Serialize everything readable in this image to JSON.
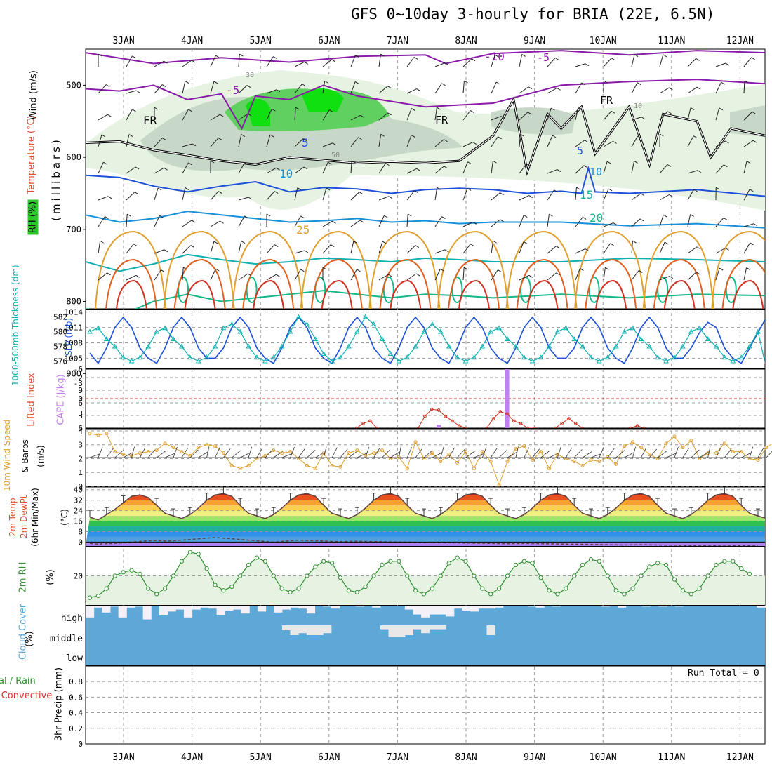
{
  "title": "GFS 0~10day 3-hourly for BRIA (22E, 6.5N)",
  "date_labels": [
    "3JAN",
    "4JAN",
    "5JAN",
    "6JAN",
    "7JAN",
    "8JAN",
    "9JAN",
    "10JAN",
    "11JAN",
    "12JAN"
  ],
  "panel_labels": {
    "p1_wind": "Wind (m/s)",
    "p1_temp": "Temperature (°C)",
    "p1_rh": "RH (%)",
    "p1_pres": "(millibars)",
    "p2_thick": "1000-500mb Thickness (dm)",
    "p2_slp": "SLP (mb)",
    "p3_li": "Lifted Index",
    "p3_cape": "CAPE (J/kg)",
    "p4_a": "10m Wind Speed",
    "p4_b": "& Barbs",
    "p4_c": "(m/s)",
    "p5_a": "2m Temp",
    "p5_b": "2m DewPt",
    "p5_c": "(6hr Min/Max)",
    "p5_d": "(°C)",
    "p6_a": "2m RH",
    "p6_b": "(%)",
    "p7_a": "Cloud Cover",
    "p7_b": "(%)",
    "p7_high": "high",
    "p7_middle": "middle",
    "p7_low": "low",
    "p8_a": "Total / Rain",
    "p8_b": "Convective",
    "p8_c": "3hr Precip (mm)",
    "run_total": "Run Total = 0"
  },
  "colors": {
    "purple": "#8a1aa8",
    "black": "#000000",
    "blue": "#1c50d8",
    "lightblue": "#1890d8",
    "teal": "#10b0b0",
    "green": "#14b888",
    "orange": "#e0a030",
    "red": "#d03020",
    "rh_light": "#e6f2e2",
    "rh_mid": "#c8d8c8",
    "rh_dark": "#a0b0a0",
    "rh_green": "#60d060",
    "rh_bright": "#10e010",
    "cloud": "#5ea8d8",
    "cape": "#c080f0"
  },
  "chart_data": [
    {
      "type": "contour",
      "name": "upper-air",
      "y_ticks_mb": [
        500,
        600,
        700,
        800,
        900
      ],
      "ylim_mb": [
        1000,
        450
      ],
      "isotherm_labels": [
        {
          "value": -10,
          "label": "-10"
        },
        {
          "value": -5,
          "label": "-5"
        },
        {
          "value": 0,
          "label": "FR"
        },
        {
          "value": 5,
          "label": "5"
        },
        {
          "value": 10,
          "label": "10"
        },
        {
          "value": 15,
          "label": "15"
        },
        {
          "value": 20,
          "label": "20"
        },
        {
          "value": 25,
          "label": "25"
        }
      ],
      "rh_labels": [
        "30",
        "50",
        "10"
      ],
      "isotherms": [
        {
          "name": "-10",
          "colorKey": "purple",
          "x": [
            0,
            1,
            2,
            3,
            4,
            5,
            5.3,
            6,
            7,
            8,
            9,
            10
          ],
          "y": [
            455,
            470,
            462,
            468,
            460,
            458,
            470,
            456,
            452,
            458,
            452,
            455
          ]
        },
        {
          "name": "-5",
          "colorKey": "purple",
          "x": [
            0,
            0.5,
            1,
            1.5,
            2,
            2.3,
            2.5,
            3,
            3.5,
            4,
            5,
            6,
            7,
            8,
            9,
            10
          ],
          "y": [
            505,
            508,
            500,
            520,
            512,
            560,
            515,
            520,
            500,
            515,
            530,
            525,
            500,
            495,
            492,
            498
          ]
        },
        {
          "name": "FR",
          "colorKey": "black",
          "x": [
            0,
            0.5,
            1,
            1.5,
            2,
            2.5,
            3,
            3.5,
            4,
            4.5,
            5,
            5.5,
            6,
            6.3,
            6.5,
            6.8,
            7,
            7.3,
            7.5,
            8,
            8.3,
            8.5,
            9,
            9.2,
            9.5,
            10
          ],
          "y": [
            580,
            578,
            590,
            597,
            605,
            610,
            600,
            604,
            608,
            606,
            608,
            605,
            570,
            520,
            620,
            540,
            560,
            530,
            595,
            530,
            610,
            540,
            550,
            600,
            560,
            570
          ]
        },
        {
          "name": "5",
          "colorKey": "blue",
          "x": [
            0,
            0.5,
            1,
            1.5,
            2,
            2.5,
            3,
            3.5,
            4,
            4.5,
            5,
            5.5,
            6,
            6.5,
            7,
            7.3,
            7.4,
            7.5,
            8,
            9,
            10
          ],
          "y": [
            625,
            628,
            640,
            648,
            640,
            634,
            648,
            642,
            644,
            650,
            645,
            643,
            645,
            650,
            647,
            650,
            615,
            648,
            650,
            645,
            654
          ]
        },
        {
          "name": "10",
          "colorKey": "lightblue",
          "x": [
            0,
            0.5,
            1,
            1.5,
            2,
            2.5,
            3,
            3.5,
            4,
            4.5,
            5,
            5.5,
            6,
            7,
            8,
            9,
            10
          ],
          "y": [
            680,
            690,
            685,
            675,
            680,
            685,
            690,
            688,
            685,
            690,
            688,
            692,
            690,
            690,
            695,
            692,
            698
          ]
        },
        {
          "name": "15",
          "colorKey": "teal",
          "x": [
            0,
            0.5,
            1,
            1.5,
            2,
            2.5,
            3,
            3.5,
            4,
            4.5,
            5,
            5.5,
            6,
            7,
            8,
            9,
            10
          ],
          "y": [
            745,
            758,
            748,
            735,
            742,
            748,
            745,
            740,
            742,
            745,
            740,
            742,
            745,
            745,
            740,
            742,
            745
          ]
        },
        {
          "name": "20",
          "colorKey": "green",
          "x": [
            0,
            0.5,
            1,
            1.5,
            2,
            2.5,
            3,
            3.5,
            4,
            4.5,
            5,
            5.5,
            6,
            7,
            8,
            9,
            10
          ],
          "y": [
            810,
            820,
            800,
            790,
            800,
            795,
            790,
            785,
            790,
            795,
            790,
            792,
            795,
            790,
            795,
            790,
            792
          ]
        }
      ]
    },
    {
      "type": "line",
      "name": "thickness-slp",
      "thickness_ticks_dm": [
        576,
        578,
        580,
        582
      ],
      "slp_ticks_mb": [
        1005,
        1008,
        1011,
        1014
      ],
      "thickness_ylim": [
        575,
        583
      ],
      "slp_ylim": [
        1003,
        1014.5
      ],
      "series": [
        {
          "name": "SLP (mb)",
          "colorKey": "blue",
          "values": [
            1006,
            1004,
            1007,
            1011,
            1013,
            1011,
            1007,
            1005,
            1004,
            1007,
            1011,
            1013,
            1011,
            1007,
            1005,
            1005,
            1007,
            1011,
            1013,
            1011,
            1007,
            1005,
            1004,
            1007,
            1011,
            1013,
            1011,
            1007,
            1005,
            1004,
            1007,
            1011,
            1013,
            1011,
            1007,
            1005,
            1004,
            1007,
            1011,
            1013,
            1011,
            1007,
            1005,
            1004,
            1007,
            1011,
            1013,
            1011,
            1007,
            1005,
            1004,
            1007,
            1011,
            1013,
            1011,
            1007,
            1005,
            1005,
            1007,
            1011,
            1013,
            1011,
            1007,
            1005,
            1004,
            1007,
            1011,
            1013,
            1011,
            1007,
            1005,
            1005,
            1007,
            1010,
            1012,
            1011,
            1007,
            1005,
            1004,
            1007,
            1010,
            1013
          ]
        },
        {
          "name": "1000-500mb Thickness (dm)",
          "colorKey": "teal",
          "values": [
            580,
            580.5,
            579,
            578,
            576.5,
            576,
            576.5,
            578,
            580,
            580.5,
            579,
            578,
            576.5,
            576,
            576.5,
            578,
            580.5,
            581,
            580,
            578,
            576.5,
            576,
            576.5,
            578,
            580,
            582,
            581,
            579,
            577,
            576,
            576.5,
            578,
            580,
            582,
            581,
            579,
            577,
            576,
            576.5,
            578,
            580,
            581,
            580,
            578,
            576.5,
            576,
            576.5,
            578,
            580,
            580.5,
            579,
            578,
            576.5,
            576,
            576.5,
            578,
            580,
            580.5,
            579,
            578,
            576.5,
            576,
            576.5,
            578,
            580,
            580.5,
            579,
            578,
            576.5,
            576,
            576.5,
            578,
            580,
            580.5,
            579,
            578,
            576.5,
            576,
            576.5,
            578,
            580,
            575
          ]
        }
      ]
    },
    {
      "type": "line-bar",
      "name": "lifted-index-cape",
      "li_ticks": [
        "-6",
        "-3",
        "0",
        "3",
        "6"
      ],
      "cape_ticks": [
        3,
        6,
        9,
        12
      ],
      "li_ylim": [
        -6.5,
        6
      ],
      "cape_ylim": [
        0,
        14
      ],
      "li_series": {
        "name": "Lifted Index",
        "colorKey": "red",
        "x": [
          3.4,
          3.5,
          3.6,
          3.7,
          4.3,
          4.4,
          4.5,
          4.6,
          4.7,
          4.8,
          4.9,
          5.0,
          5.3,
          5.4,
          5.5,
          5.6,
          5.7,
          5.8,
          5.9,
          6.0,
          6.3,
          6.4,
          6.5,
          6.6,
          6.7,
          7.4,
          7.5,
          7.6
        ],
        "y": [
          6,
          5,
          4.5,
          6,
          6,
          3.5,
          2,
          2.2,
          3.5,
          4.5,
          5.5,
          6,
          6,
          4,
          2.5,
          3,
          4.5,
          5,
          6,
          6,
          6,
          5,
          4,
          5,
          6,
          6,
          5.5,
          6
        ]
      },
      "cape_bars": [
        {
          "x": 4.6,
          "value": 0.8
        },
        {
          "x": 5.6,
          "value": 14
        }
      ]
    },
    {
      "type": "line",
      "name": "10m-wind-speed",
      "yticks": [
        0,
        1,
        2,
        3,
        4
      ],
      "ylim": [
        0,
        4.2
      ],
      "values": [
        3.8,
        3.7,
        3.8,
        2.5,
        2.3,
        2.2,
        2.4,
        2.5,
        2.6,
        3.1,
        2.8,
        2.5,
        2.2,
        2.8,
        3.0,
        2.9,
        2.4,
        1.5,
        1.3,
        1.5,
        2.0,
        2.2,
        2.6,
        2.4,
        2.5,
        2.0,
        1.5,
        1.3,
        2.4,
        1.5,
        1.4,
        2.4,
        2.6,
        2.2,
        2.4,
        2.6,
        2.0,
        2.1,
        1.3,
        3.2,
        2.0,
        2.4,
        1.8,
        2.3,
        1.7,
        2.5,
        1.3,
        2.5,
        1.8,
        0.1,
        1.8,
        2.7,
        2.9,
        1.9,
        2.5,
        1.3,
        2.3,
        2.0,
        1.8,
        1.5,
        1.9,
        1.8,
        2.1,
        1.6,
        2.9,
        3.2,
        2.8,
        2.3,
        2.0,
        3.1,
        3.6,
        2.8,
        3.3,
        2.0,
        2.4,
        2.4,
        3.1,
        2.5,
        2.5,
        2.0,
        1.9,
        2.8,
        3.2,
        3.5
      ]
    },
    {
      "type": "area",
      "name": "2m-temp-dewpt",
      "yticks": [
        0,
        8,
        16,
        24,
        32,
        40
      ],
      "ylim": [
        -3,
        42
      ],
      "temp": [
        19,
        17,
        21,
        25,
        30,
        35,
        36,
        34,
        28,
        22,
        20,
        18,
        21,
        26,
        32,
        36,
        37,
        35,
        28,
        22,
        20,
        18,
        21,
        26,
        32,
        36,
        37,
        35,
        28,
        22,
        20,
        18,
        21,
        26,
        32,
        36,
        37,
        35,
        28,
        22,
        20,
        18,
        21,
        26,
        32,
        36,
        37,
        35,
        28,
        22,
        20,
        18,
        21,
        26,
        32,
        36,
        37,
        35,
        28,
        22,
        20,
        18,
        21,
        26,
        32,
        36,
        37,
        35,
        28,
        22,
        20,
        18,
        21,
        26,
        32,
        36,
        37,
        35,
        28,
        22,
        20,
        18
      ],
      "dewpt": [
        -1,
        -1.5,
        -1.2,
        -1,
        -0.5,
        0,
        0.5,
        1,
        1.2,
        0.8,
        1,
        1.5,
        2,
        2.5,
        3,
        3.5,
        3,
        2.5,
        2,
        1.5,
        1,
        0.5,
        0,
        0.5,
        1,
        1.5,
        1.2,
        1,
        0.8,
        0.5,
        0.4,
        0.5,
        0.6,
        0.5,
        0.4,
        0.3,
        0.2,
        0.1,
        0,
        -0.1,
        -0.2,
        -0.3,
        -0.4,
        -0.5,
        -0.6,
        -0.7,
        -0.8,
        -0.9,
        -1,
        -1.1,
        -1.2,
        -1.1,
        -1,
        -1.1,
        -1.2,
        -1.3,
        -1.4,
        -1.5,
        -1.6,
        -1.7,
        -1.8,
        -1.9,
        -2,
        -2.1,
        -2.2,
        -2.1,
        -2,
        -2.1,
        -2.2,
        -2.3,
        -2.4,
        -2.5,
        -2.6,
        -2.7,
        -2.8,
        -2.9,
        -3,
        -2.9,
        -2.8,
        -2.9,
        -3
      ]
    },
    {
      "type": "area",
      "name": "2m-rh",
      "yticks": [
        20
      ],
      "ylim": [
        4,
        36
      ],
      "values": [
        8,
        9,
        13,
        20,
        22,
        23,
        21,
        13,
        10,
        13,
        20,
        28,
        33,
        32,
        24,
        15,
        12,
        14,
        20,
        26,
        30,
        28,
        20,
        13,
        11,
        13,
        20,
        25,
        28,
        27,
        19,
        12,
        11,
        14,
        20,
        26,
        28,
        28,
        20,
        12,
        10,
        13,
        20,
        27,
        30,
        28,
        20,
        13,
        10,
        13,
        20,
        26,
        28,
        27,
        19,
        12,
        10,
        13,
        20,
        26,
        29,
        28,
        20,
        12,
        10,
        13,
        20,
        25,
        27,
        26,
        18,
        12,
        10,
        13,
        20,
        26,
        28,
        28,
        24,
        21
      ]
    },
    {
      "type": "heatmap",
      "name": "cloud-cover",
      "levels": [
        "high",
        "middle",
        "low"
      ],
      "high": [
        40,
        90,
        65,
        95,
        40,
        90,
        95,
        30,
        100,
        50,
        70,
        80,
        40,
        80,
        90,
        85,
        50,
        75,
        80,
        60,
        100,
        70,
        100,
        65,
        80,
        90,
        85,
        60,
        100,
        95,
        85,
        100,
        100,
        95,
        100,
        90,
        100,
        100,
        100,
        80,
        55,
        40,
        55,
        55,
        45,
        85,
        75,
        70,
        85,
        85,
        90,
        100,
        100,
        100,
        95,
        90,
        100,
        95,
        100,
        100,
        100,
        100,
        100,
        95,
        100,
        90,
        100,
        100,
        95,
        100,
        95,
        100,
        95,
        100,
        100,
        100,
        100,
        100,
        100,
        100,
        100,
        100,
        90
      ],
      "middle": [
        100,
        100,
        100,
        100,
        100,
        100,
        100,
        100,
        100,
        100,
        100,
        100,
        100,
        100,
        100,
        100,
        100,
        100,
        100,
        100,
        100,
        100,
        100,
        100,
        75,
        50,
        60,
        50,
        50,
        60,
        100,
        100,
        100,
        100,
        100,
        100,
        80,
        40,
        40,
        50,
        80,
        60,
        80,
        80,
        100,
        100,
        100,
        100,
        100,
        50,
        100,
        100,
        100,
        100,
        100,
        100,
        100,
        100,
        100,
        100,
        100,
        100,
        100,
        100,
        100,
        100,
        100,
        100,
        100,
        100,
        100,
        100,
        100,
        100,
        100,
        100,
        100,
        100,
        100,
        100,
        100,
        100,
        100
      ],
      "low": 100
    },
    {
      "type": "bar",
      "name": "3hr-precip",
      "yticks": [
        "0",
        "0.2",
        "0.4",
        "0.6",
        "0.8"
      ],
      "ylim": [
        0,
        0.9
      ],
      "values": []
    }
  ]
}
